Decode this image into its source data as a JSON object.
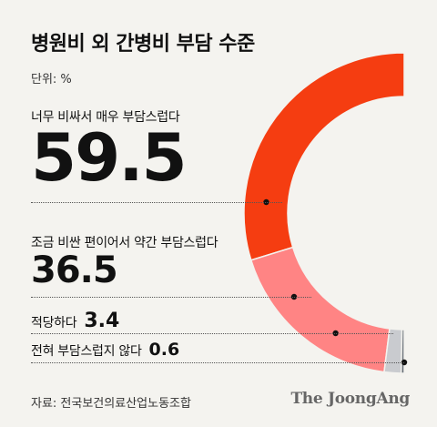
{
  "title": "병원비 외 간병비 부담 수준",
  "unit": "단위: %",
  "source": "자료: 전국보건의료산업노동조합",
  "brand": "The JoongAng",
  "colors": {
    "very_burdensome": "#f53d11",
    "somewhat_burdensome": "#ff8484",
    "moderate": "#c9cbcf",
    "not_at_all": "#6c737b"
  },
  "chart_data": {
    "type": "pie",
    "categories": [
      "너무 비싸서 매우 부담스럽다",
      "조금 비싼 편이어서 약간 부담스럽다",
      "적당하다",
      "전혀 부담스럽지 않다"
    ],
    "values": [
      59.5,
      36.5,
      3.4,
      0.6
    ],
    "value_labels": [
      "59.5",
      "36.5",
      "3.4",
      "0.6"
    ],
    "title": "병원비 외 간병비 부담 수준",
    "unit": "단위: %"
  }
}
